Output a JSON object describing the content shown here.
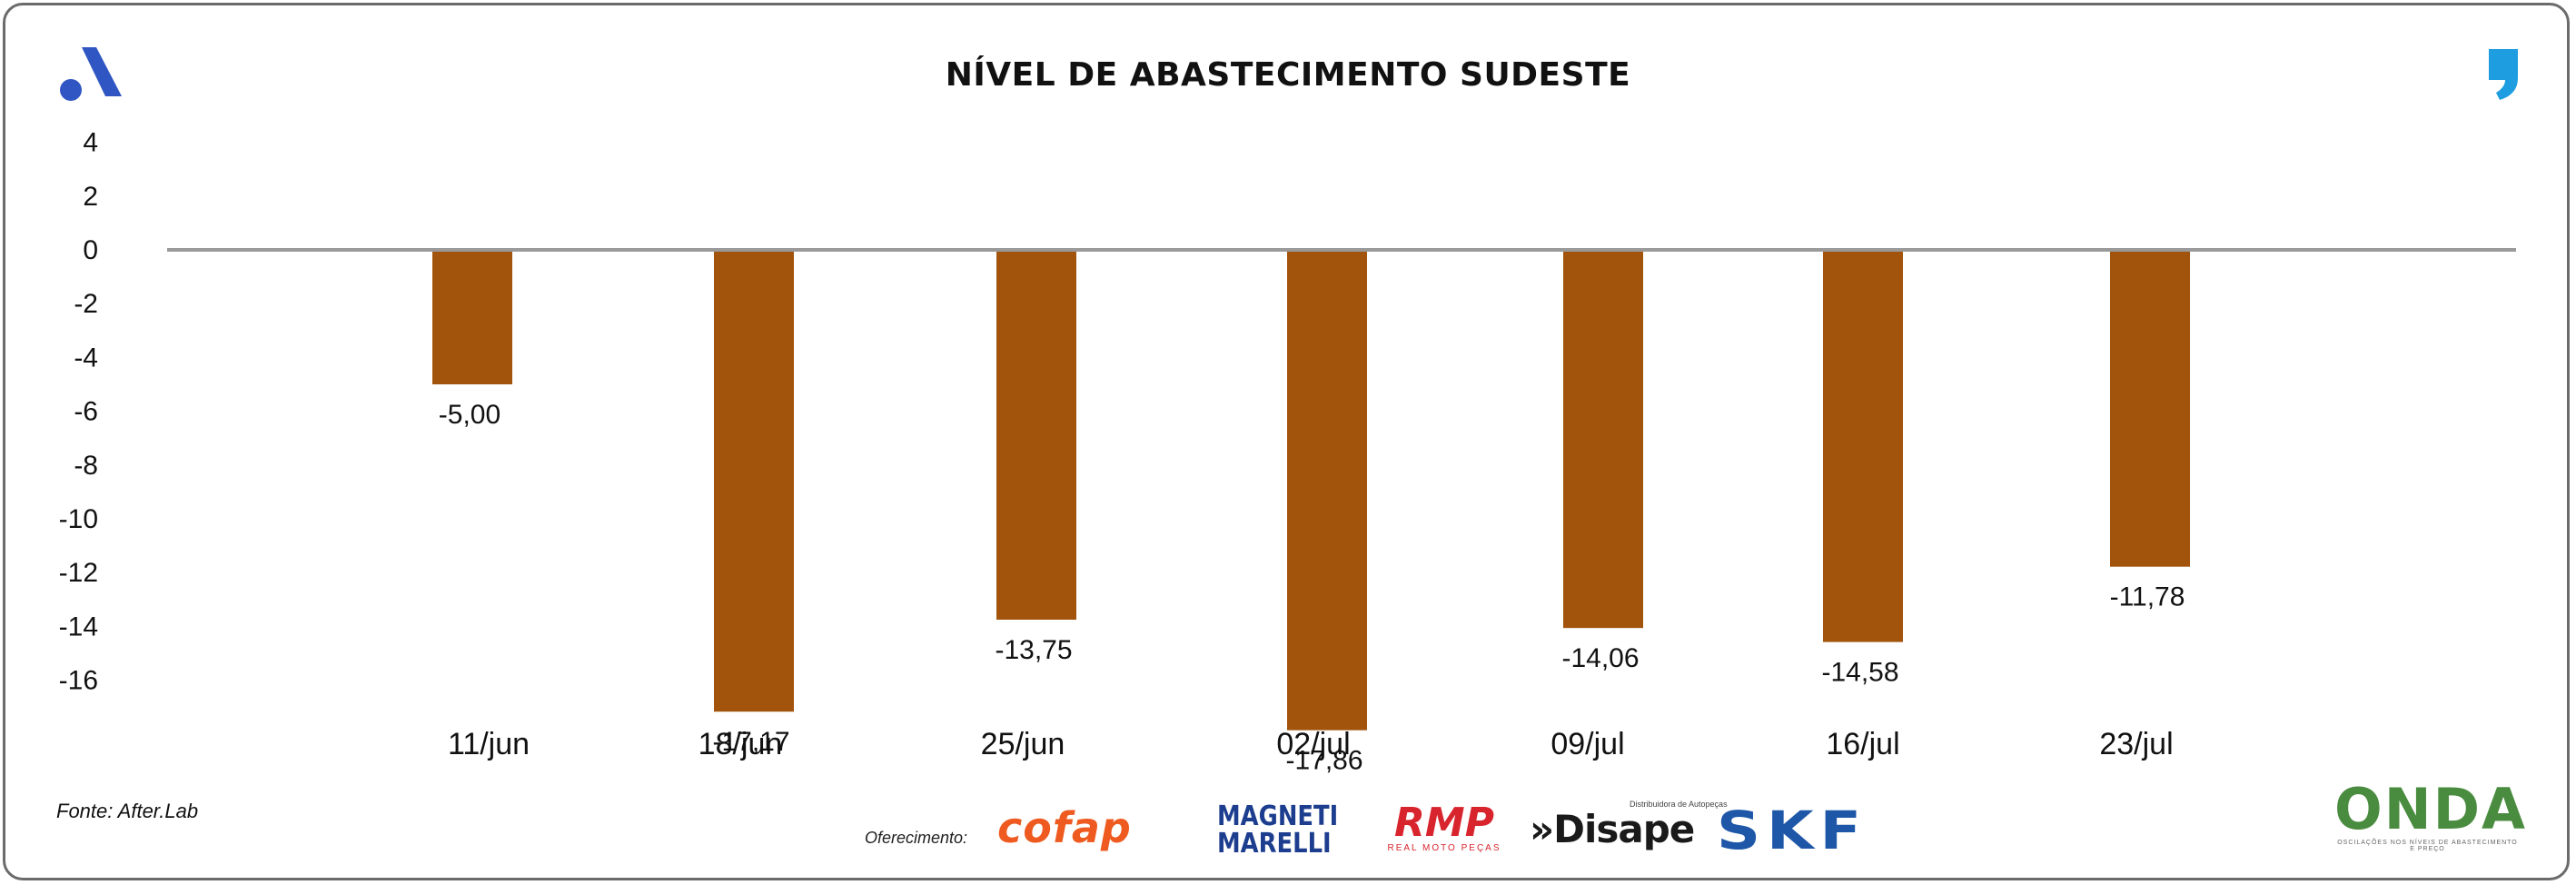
{
  "header": {
    "title": "NÍVEL DE ABASTECIMENTO SUDESTE"
  },
  "branding": {
    "left_logo_icon": "a-logo-icon",
    "right_logo_icon": "quote-logo-icon",
    "left_logo_color": "#2f56c2",
    "right_logo_color": "#1e9de0"
  },
  "footer": {
    "source": "Fonte: After.Lab",
    "sponsors_label": "Oferecimento:",
    "sponsors": {
      "cofap": "cofap",
      "magneti_line1": "MAGNETI",
      "magneti_line2": "MARELLI",
      "rmp": "RMP",
      "rmp_sub": "REAL MOTO PEÇAS",
      "disape_tag": "Distribuidora de Autopeças",
      "disape": "»Disape",
      "skf": "SKF",
      "onda": "ONDA",
      "onda_sub": "OSCILAÇÕES NOS NÍVEIS DE ABASTECIMENTO E PREÇO"
    }
  },
  "chart_data": {
    "type": "bar",
    "title": "NÍVEL DE ABASTECIMENTO SUDESTE",
    "categories": [
      "11/jun",
      "18/jun",
      "25/jun",
      "02/jul",
      "09/jul",
      "16/jul",
      "23/jul"
    ],
    "values": [
      -5.0,
      -17.17,
      -13.75,
      -17.86,
      -14.06,
      -14.58,
      -11.78
    ],
    "value_labels": [
      "-5,00",
      "-17,17",
      "-13,75",
      "-17,86",
      "-14,06",
      "-14,58",
      "-11,78"
    ],
    "yticks": [
      "4",
      "2",
      "0",
      "-2",
      "-4",
      "-6",
      "-8",
      "-10",
      "-12",
      "-14",
      "-16"
    ],
    "ytick_values": [
      4,
      2,
      0,
      -2,
      -4,
      -6,
      -8,
      -10,
      -12,
      -14,
      -16
    ],
    "ylim": [
      -16,
      4
    ],
    "xlabel": "",
    "ylabel": "",
    "grid": false,
    "legend": "none",
    "bar_color": "#a2540c",
    "zero_line_color": "#9a9a9a"
  }
}
